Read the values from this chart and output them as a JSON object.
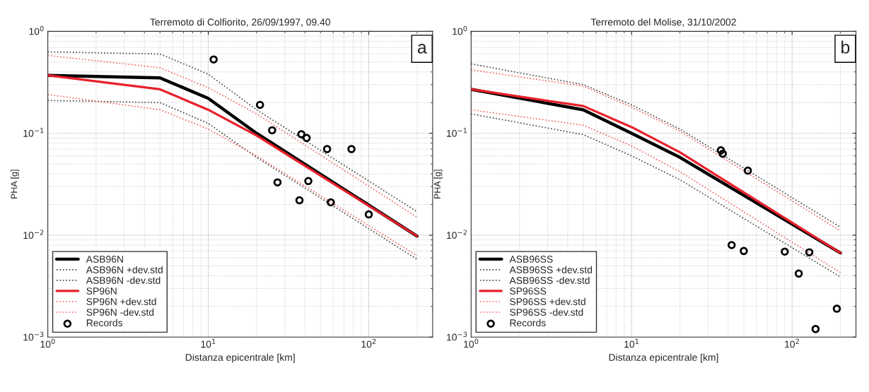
{
  "chart_data": [
    {
      "type": "line",
      "title": "Terremoto di Colfiorito, 26/09/1997, 09.40",
      "xlabel": "Distanza epicentrale [km]",
      "ylabel": "PHA [g]",
      "log": "xy",
      "grid": true,
      "legend": "bottom left",
      "annotations": [
        "a"
      ],
      "xlim": [
        1,
        250
      ],
      "ylim": [
        0.001,
        1
      ],
      "xticks": [
        {
          "value": 1,
          "label": "10$^{0}$"
        },
        {
          "value": 10,
          "label": "10$^{1}$"
        },
        {
          "value": 100,
          "label": "10$^{2}$"
        }
      ],
      "yticks": [
        {
          "value": 0.001,
          "label": "10$^{−3}$"
        },
        {
          "value": 0.01,
          "label": "10$^{−2}$"
        },
        {
          "value": 0.1,
          "label": "10$^{−1}$"
        },
        {
          "value": 1,
          "label": "10$^{0}$"
        }
      ],
      "series": [
        {
          "name": "ASB96N",
          "color": "#000000",
          "line_style": "solid",
          "x": [
            1,
            5,
            10,
            20,
            200
          ],
          "values": [
            0.37,
            0.35,
            0.22,
            0.1,
            0.0098
          ]
        },
        {
          "name": "ASB96N +dev.std",
          "color": "#444444",
          "line_style": "dotted",
          "x": [
            1,
            5,
            10,
            20,
            200
          ],
          "values": [
            0.63,
            0.6,
            0.38,
            0.17,
            0.017
          ]
        },
        {
          "name": "ASB96N -dev.std",
          "color": "#444444",
          "line_style": "dotted",
          "x": [
            1,
            5,
            10,
            20,
            200
          ],
          "values": [
            0.21,
            0.2,
            0.125,
            0.058,
            0.0058
          ]
        },
        {
          "name": "SP96N",
          "color": "#e8202a",
          "line_style": "solid",
          "x": [
            1,
            5,
            10,
            20,
            200
          ],
          "values": [
            0.37,
            0.27,
            0.17,
            0.095,
            0.0098
          ]
        },
        {
          "name": "SP96N +dev.std",
          "color": "#f06060",
          "line_style": "dotted",
          "x": [
            1,
            5,
            10,
            20,
            200
          ],
          "values": [
            0.58,
            0.44,
            0.28,
            0.155,
            0.015
          ]
        },
        {
          "name": "SP96N -dev.std",
          "color": "#f06060",
          "line_style": "dotted",
          "x": [
            1,
            5,
            10,
            20,
            200
          ],
          "values": [
            0.24,
            0.17,
            0.11,
            0.06,
            0.0063
          ]
        },
        {
          "name": "Records",
          "type": "scatter",
          "marker": "circle",
          "color": "#000000",
          "x": [
            10.8,
            21,
            25,
            27,
            37,
            38,
            41,
            42,
            55,
            58,
            78,
            100
          ],
          "values": [
            0.53,
            0.19,
            0.107,
            0.033,
            0.022,
            0.098,
            0.09,
            0.034,
            0.07,
            0.021,
            0.07,
            0.016
          ]
        }
      ]
    },
    {
      "type": "line",
      "title": "Terremoto del Molise, 31/10/2002",
      "xlabel": "Distanza epicentrale [km]",
      "ylabel": "PHA [g]",
      "log": "xy",
      "grid": true,
      "legend": "bottom left",
      "annotations": [
        "b"
      ],
      "xlim": [
        1,
        250
      ],
      "ylim": [
        0.001,
        1
      ],
      "xticks": [
        {
          "value": 1,
          "label": "10$^{0}$"
        },
        {
          "value": 10,
          "label": "10$^{1}$"
        },
        {
          "value": 100,
          "label": "10$^{2}$"
        }
      ],
      "yticks": [
        {
          "value": 0.001,
          "label": "10$^{−3}$"
        },
        {
          "value": 0.01,
          "label": "10$^{−2}$"
        },
        {
          "value": 0.1,
          "label": "10$^{−1}$"
        },
        {
          "value": 1,
          "label": "10$^{0}$"
        }
      ],
      "series": [
        {
          "name": "ASB96SS",
          "color": "#000000",
          "line_style": "solid",
          "x": [
            1,
            5,
            10,
            20,
            200
          ],
          "values": [
            0.27,
            0.17,
            0.1,
            0.058,
            0.0067
          ]
        },
        {
          "name": "ASB96SS +dev.std",
          "color": "#444444",
          "line_style": "dotted",
          "x": [
            1,
            5,
            10,
            20,
            200
          ],
          "values": [
            0.48,
            0.3,
            0.19,
            0.11,
            0.012
          ]
        },
        {
          "name": "ASB96SS -dev.std",
          "color": "#444444",
          "line_style": "dotted",
          "x": [
            1,
            5,
            10,
            20,
            200
          ],
          "values": [
            0.155,
            0.097,
            0.06,
            0.035,
            0.0039
          ]
        },
        {
          "name": "SP96SS",
          "color": "#e8202a",
          "line_style": "solid",
          "x": [
            1,
            5,
            10,
            20,
            200
          ],
          "values": [
            0.27,
            0.185,
            0.115,
            0.065,
            0.0067
          ]
        },
        {
          "name": "SP96SS +dev.std",
          "color": "#f06060",
          "line_style": "dotted",
          "x": [
            1,
            5,
            10,
            20,
            200
          ],
          "values": [
            0.42,
            0.29,
            0.18,
            0.105,
            0.011
          ]
        },
        {
          "name": "SP96SS -dev.std",
          "color": "#f06060",
          "line_style": "dotted",
          "x": [
            1,
            5,
            10,
            20,
            200
          ],
          "values": [
            0.17,
            0.12,
            0.075,
            0.042,
            0.0043
          ]
        },
        {
          "name": "Records",
          "type": "scatter",
          "marker": "circle",
          "color": "#000000",
          "x": [
            36,
            37,
            53,
            42,
            50,
            90,
            128,
            110,
            140,
            190
          ],
          "values": [
            0.068,
            0.063,
            0.043,
            0.008,
            0.007,
            0.0069,
            0.0068,
            0.0042,
            0.0012,
            0.0019
          ]
        }
      ]
    }
  ]
}
